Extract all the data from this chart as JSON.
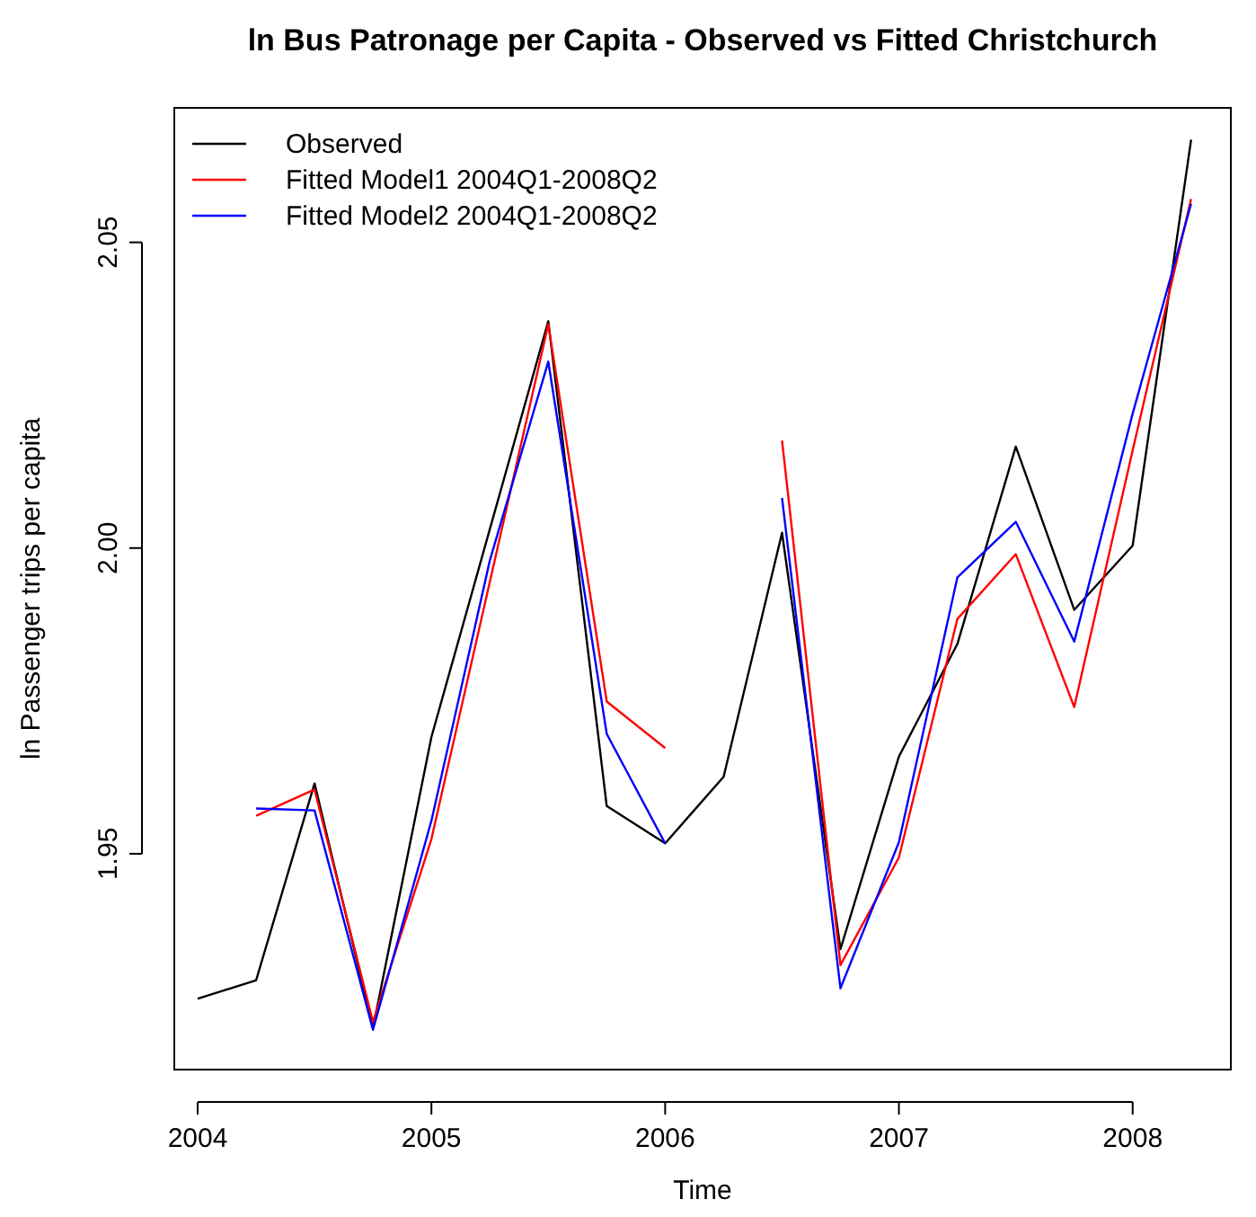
{
  "chart_data": {
    "type": "line",
    "title": "ln Bus Patronage per Capita - Observed vs Fitted Christchurch",
    "xlabel": "Time",
    "ylabel": "ln Passenger trips per capita",
    "x": [
      2004,
      2004.25,
      2004.5,
      2004.75,
      2005,
      2005.25,
      2005.5,
      2005.75,
      2006,
      2006.25,
      2006.5,
      2006.75,
      2007,
      2007.25,
      2007.5,
      2007.75,
      2008,
      2008.25
    ],
    "series": [
      {
        "name": "Observed",
        "color": "#000000",
        "values": [
          1.9263,
          1.9293,
          1.9615,
          1.9215,
          1.9691,
          2.0031,
          2.0371,
          1.9578,
          1.9517,
          1.9626,
          2.0025,
          1.9344,
          1.9659,
          1.9843,
          2.0166,
          1.9899,
          2.0004,
          2.0668
        ]
      },
      {
        "name": "Fitted Model1 2004Q1-2008Q2",
        "color": "#ff0000",
        "values": [
          null,
          1.9562,
          1.9605,
          1.9225,
          1.9524,
          1.9945,
          2.0366,
          1.9749,
          1.9673,
          null,
          2.0176,
          1.9318,
          1.9494,
          1.9884,
          1.999,
          1.974,
          2.016,
          2.0571
        ]
      },
      {
        "name": "Fitted Model2 2004Q1-2008Q2",
        "color": "#0000ff",
        "values": [
          null,
          1.9574,
          1.9571,
          1.9212,
          1.9554,
          1.998,
          2.0305,
          1.9696,
          1.9517,
          null,
          2.0082,
          1.928,
          1.9519,
          1.9952,
          2.0043,
          1.9847,
          2.022,
          2.0563
        ]
      }
    ],
    "xlim": [
      2003.9,
      2008.42
    ],
    "xticks": [
      2004,
      2005,
      2006,
      2007,
      2008
    ],
    "ylim": [
      1.9147,
      2.072
    ],
    "yticks": [
      {
        "value": 1.95,
        "label": "1.95"
      },
      {
        "value": 2.0,
        "label": "2.00"
      },
      {
        "value": 2.05,
        "label": "2.05"
      }
    ],
    "legend": "top left",
    "grid": false,
    "marker": "none",
    "line_style": "solid"
  }
}
